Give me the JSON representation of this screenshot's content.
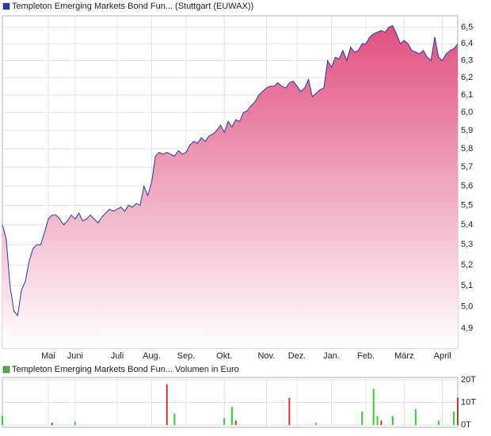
{
  "chart_data": [
    {
      "type": "area",
      "log_scale": true,
      "grid": true,
      "area_color": "#e0507f",
      "ylim": [
        4.81,
        6.57
      ],
      "yticks": [
        {
          "value": 4.9,
          "label": "4,9"
        },
        {
          "value": 5.0,
          "label": "5,0"
        },
        {
          "value": 5.1,
          "label": "5,1"
        },
        {
          "value": 5.2,
          "label": "5,2"
        },
        {
          "value": 5.3,
          "label": "5,3"
        },
        {
          "value": 5.4,
          "label": "5,4"
        },
        {
          "value": 5.5,
          "label": "5,5"
        },
        {
          "value": 5.6,
          "label": "5,6"
        },
        {
          "value": 5.7,
          "label": "5,7"
        },
        {
          "value": 5.8,
          "label": "5,8"
        },
        {
          "value": 5.9,
          "label": "5,9"
        },
        {
          "value": 6.0,
          "label": "6,0"
        },
        {
          "value": 6.1,
          "label": "6,1"
        },
        {
          "value": 6.2,
          "label": "6,2"
        },
        {
          "value": 6.3,
          "label": "6,3"
        },
        {
          "value": 6.4,
          "label": "6,4"
        },
        {
          "value": 6.5,
          "label": "6,5"
        }
      ],
      "categories": [
        null,
        null,
        null,
        null,
        null,
        null,
        null,
        null,
        null,
        null,
        null,
        null,
        "Mai",
        null,
        null,
        null,
        null,
        null,
        null,
        "Juni",
        null,
        null,
        null,
        null,
        null,
        null,
        null,
        null,
        null,
        null,
        "Juli",
        null,
        null,
        null,
        null,
        null,
        null,
        null,
        null,
        "Aug.",
        null,
        null,
        null,
        null,
        null,
        null,
        null,
        null,
        "Sep.",
        null,
        null,
        null,
        null,
        null,
        null,
        null,
        null,
        null,
        "Okt.",
        null,
        null,
        null,
        null,
        null,
        null,
        null,
        null,
        null,
        null,
        "Nov.",
        null,
        null,
        null,
        null,
        null,
        null,
        null,
        "Dez.",
        null,
        null,
        null,
        null,
        null,
        null,
        null,
        null,
        "Jan.",
        null,
        null,
        null,
        null,
        null,
        null,
        null,
        null,
        "Feb.",
        null,
        null,
        null,
        null,
        null,
        null,
        null,
        null,
        null,
        "März",
        null,
        null,
        null,
        null,
        null,
        null,
        null,
        null,
        null,
        "April",
        null,
        null,
        null,
        null
      ],
      "series": [
        {
          "name": "Templeton Emerging Markets Bond Fun... (Stuttgart (EUWAX))",
          "color": "#1f3f9f",
          "values": [
            5.4,
            5.33,
            5.1,
            4.98,
            4.96,
            5.08,
            5.12,
            5.22,
            5.28,
            5.3,
            5.3,
            5.36,
            5.43,
            5.45,
            5.45,
            5.43,
            5.4,
            5.42,
            5.45,
            5.43,
            5.46,
            5.42,
            5.43,
            5.45,
            5.43,
            5.41,
            5.44,
            5.46,
            5.48,
            5.47,
            5.48,
            5.49,
            5.47,
            5.5,
            5.49,
            5.51,
            5.5,
            5.6,
            5.55,
            5.62,
            5.76,
            5.78,
            5.77,
            5.78,
            5.77,
            5.76,
            5.79,
            5.77,
            5.78,
            5.82,
            5.84,
            5.83,
            5.86,
            5.84,
            5.87,
            5.88,
            5.9,
            5.93,
            5.89,
            5.95,
            5.92,
            5.96,
            5.95,
            6.0,
            6.01,
            6.04,
            6.06,
            6.1,
            6.12,
            6.14,
            6.15,
            6.15,
            6.17,
            6.15,
            6.14,
            6.17,
            6.18,
            6.15,
            6.12,
            6.14,
            6.19,
            6.09,
            6.11,
            6.13,
            6.14,
            6.3,
            6.26,
            6.32,
            6.31,
            6.36,
            6.3,
            6.38,
            6.35,
            6.36,
            6.4,
            6.4,
            6.44,
            6.46,
            6.47,
            6.48,
            6.47,
            6.5,
            6.51,
            6.46,
            6.4,
            6.42,
            6.4,
            6.36,
            6.35,
            6.34,
            6.36,
            6.32,
            6.3,
            6.44,
            6.32,
            6.3,
            6.34,
            6.36,
            6.37,
            6.4
          ]
        }
      ]
    },
    {
      "type": "bar",
      "title": "Templeton Emerging Markets Bond Fun... Volumen in Euro",
      "color": "#4caf50",
      "grid": true,
      "ylim": [
        -1000,
        21000
      ],
      "yticks": [
        {
          "value": 0,
          "label": "0T"
        },
        {
          "value": 10000,
          "label": "10T"
        },
        {
          "value": 20000,
          "label": "20T"
        }
      ],
      "series": [
        {
          "color": "#33cc33",
          "values": [
            4000,
            null,
            null,
            null,
            null,
            null,
            null,
            null,
            null,
            null,
            null,
            null,
            null,
            null,
            null,
            null,
            null,
            null,
            null,
            1500,
            null,
            null,
            null,
            null,
            null,
            null,
            null,
            null,
            null,
            null,
            null,
            null,
            null,
            null,
            null,
            null,
            null,
            null,
            null,
            null,
            null,
            null,
            null,
            null,
            null,
            5000,
            null,
            null,
            null,
            null,
            null,
            null,
            null,
            null,
            null,
            null,
            null,
            null,
            3000,
            null,
            8000,
            null,
            null,
            null,
            null,
            null,
            null,
            null,
            null,
            null,
            null,
            null,
            null,
            null,
            null,
            null,
            null,
            null,
            null,
            null,
            null,
            null,
            1000,
            null,
            null,
            null,
            null,
            null,
            null,
            null,
            null,
            null,
            null,
            null,
            6000,
            null,
            null,
            16000,
            4000,
            null,
            null,
            null,
            4000,
            null,
            null,
            null,
            null,
            null,
            7000,
            null,
            null,
            null,
            null,
            null,
            2000,
            null,
            null,
            null,
            6000,
            null
          ]
        },
        {
          "color": "#cc3333",
          "values": [
            null,
            null,
            null,
            null,
            null,
            null,
            null,
            null,
            null,
            null,
            null,
            null,
            null,
            1000,
            null,
            null,
            null,
            null,
            null,
            null,
            null,
            null,
            null,
            null,
            null,
            null,
            null,
            null,
            null,
            null,
            null,
            null,
            null,
            null,
            null,
            null,
            null,
            null,
            null,
            null,
            null,
            null,
            null,
            18000,
            null,
            null,
            null,
            null,
            null,
            null,
            null,
            null,
            null,
            null,
            null,
            null,
            null,
            null,
            null,
            null,
            null,
            2000,
            null,
            null,
            null,
            null,
            null,
            null,
            null,
            null,
            null,
            null,
            null,
            null,
            null,
            12000,
            null,
            null,
            null,
            null,
            null,
            null,
            null,
            null,
            null,
            null,
            null,
            null,
            null,
            null,
            null,
            null,
            null,
            null,
            null,
            null,
            null,
            null,
            null,
            2000,
            null,
            null,
            null,
            null,
            null,
            null,
            null,
            null,
            null,
            null,
            null,
            null,
            null,
            null,
            null,
            null,
            null,
            null,
            null,
            12000
          ]
        }
      ]
    }
  ]
}
